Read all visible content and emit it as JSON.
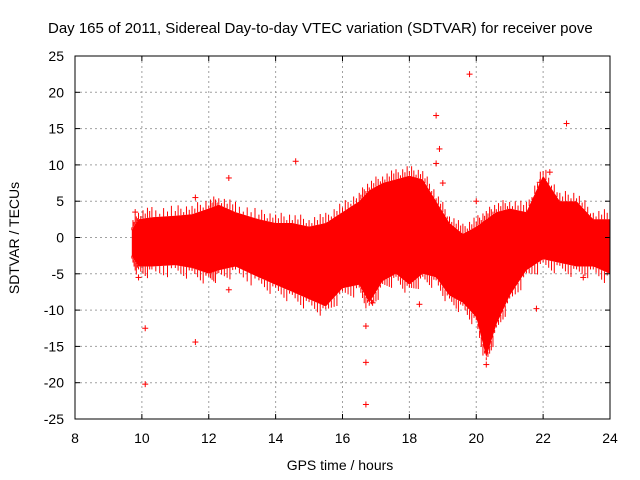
{
  "chart_data": {
    "type": "scatter",
    "title": "Day 165 of 2011, Sidereal Day-to-day VTEC variation (SDTVAR) for receiver pove",
    "xlabel": "GPS time / hours",
    "ylabel": "SDTVAR / TECUs",
    "xlim": [
      8,
      24
    ],
    "ylim": [
      -25,
      25
    ],
    "xticks": [
      8,
      10,
      12,
      14,
      16,
      18,
      20,
      22,
      24
    ],
    "yticks": [
      -25,
      -20,
      -15,
      -10,
      -5,
      0,
      5,
      10,
      15,
      20,
      25
    ],
    "xtick_labels": [
      "8",
      "10",
      "12",
      "14",
      "16",
      "18",
      "20",
      "22",
      "24"
    ],
    "ytick_labels": [
      "-25",
      "-20",
      "-15",
      "-10",
      "-5",
      "0",
      "5",
      "10",
      "15",
      "20",
      "25"
    ],
    "grid": true,
    "marker": "+",
    "series_color": "#ff0000",
    "envelope": {
      "name": "dense data band",
      "points": [
        {
          "x": 9.7,
          "upper": 1.0,
          "lower": -2.5
        },
        {
          "x": 9.9,
          "upper": 2.5,
          "lower": -4.0
        },
        {
          "x": 10.3,
          "upper": 2.8,
          "lower": -4.0
        },
        {
          "x": 11.0,
          "upper": 3.0,
          "lower": -3.8
        },
        {
          "x": 11.5,
          "upper": 3.2,
          "lower": -4.2
        },
        {
          "x": 12.0,
          "upper": 4.0,
          "lower": -5.0
        },
        {
          "x": 12.3,
          "upper": 4.5,
          "lower": -4.5
        },
        {
          "x": 12.8,
          "upper": 3.5,
          "lower": -4.0
        },
        {
          "x": 13.5,
          "upper": 2.5,
          "lower": -5.5
        },
        {
          "x": 14.0,
          "upper": 2.0,
          "lower": -6.5
        },
        {
          "x": 14.5,
          "upper": 2.0,
          "lower": -7.5
        },
        {
          "x": 15.0,
          "upper": 1.5,
          "lower": -8.5
        },
        {
          "x": 15.5,
          "upper": 2.0,
          "lower": -9.5
        },
        {
          "x": 16.0,
          "upper": 3.5,
          "lower": -7.0
        },
        {
          "x": 16.5,
          "upper": 5.0,
          "lower": -6.5
        },
        {
          "x": 16.8,
          "upper": 6.5,
          "lower": -9.0
        },
        {
          "x": 17.2,
          "upper": 7.5,
          "lower": -6.0
        },
        {
          "x": 17.6,
          "upper": 8.0,
          "lower": -5.0
        },
        {
          "x": 18.0,
          "upper": 8.5,
          "lower": -6.5
        },
        {
          "x": 18.4,
          "upper": 8.0,
          "lower": -5.0
        },
        {
          "x": 18.8,
          "upper": 5.0,
          "lower": -5.5
        },
        {
          "x": 19.2,
          "upper": 2.0,
          "lower": -8.0
        },
        {
          "x": 19.6,
          "upper": 0.5,
          "lower": -9.0
        },
        {
          "x": 20.0,
          "upper": 1.5,
          "lower": -11.0
        },
        {
          "x": 20.3,
          "upper": 2.5,
          "lower": -16.5
        },
        {
          "x": 20.6,
          "upper": 3.5,
          "lower": -12.0
        },
        {
          "x": 21.0,
          "upper": 4.0,
          "lower": -8.0
        },
        {
          "x": 21.5,
          "upper": 3.5,
          "lower": -4.5
        },
        {
          "x": 22.0,
          "upper": 8.5,
          "lower": -3.0
        },
        {
          "x": 22.5,
          "upper": 5.0,
          "lower": -3.5
        },
        {
          "x": 23.0,
          "upper": 5.0,
          "lower": -4.0
        },
        {
          "x": 23.5,
          "upper": 2.5,
          "lower": -4.0
        },
        {
          "x": 24.0,
          "upper": 2.5,
          "lower": -5.0
        }
      ]
    },
    "outliers": [
      {
        "x": 10.1,
        "y": -20.2
      },
      {
        "x": 10.1,
        "y": -12.5
      },
      {
        "x": 9.9,
        "y": -5.5
      },
      {
        "x": 9.8,
        "y": 3.5
      },
      {
        "x": 11.6,
        "y": -14.4
      },
      {
        "x": 11.6,
        "y": 5.5
      },
      {
        "x": 12.6,
        "y": 8.2
      },
      {
        "x": 12.6,
        "y": -7.2
      },
      {
        "x": 14.6,
        "y": 10.5
      },
      {
        "x": 14.6,
        "y": -7.3
      },
      {
        "x": 16.7,
        "y": -23.0
      },
      {
        "x": 16.7,
        "y": -17.2
      },
      {
        "x": 16.7,
        "y": -12.2
      },
      {
        "x": 16.9,
        "y": -9.0
      },
      {
        "x": 18.3,
        "y": -9.2
      },
      {
        "x": 18.8,
        "y": 16.8
      },
      {
        "x": 18.9,
        "y": 12.2
      },
      {
        "x": 18.8,
        "y": 10.2
      },
      {
        "x": 19.0,
        "y": 7.5
      },
      {
        "x": 19.8,
        "y": 22.5
      },
      {
        "x": 20.0,
        "y": 5.0
      },
      {
        "x": 20.3,
        "y": -17.5
      },
      {
        "x": 21.8,
        "y": -9.8
      },
      {
        "x": 21.9,
        "y": 7.6
      },
      {
        "x": 22.2,
        "y": 9.0
      },
      {
        "x": 22.7,
        "y": 15.7
      },
      {
        "x": 23.2,
        "y": -5.5
      }
    ]
  }
}
